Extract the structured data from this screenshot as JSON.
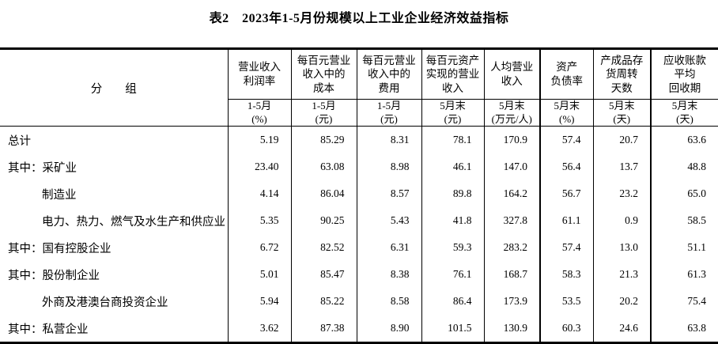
{
  "title": "表2　2023年1-5月份规模以上工业企业经济效益指标",
  "table": {
    "group_header": "分　　组",
    "columns": [
      {
        "name": "营业收入\n利润率",
        "period": "1-5月",
        "unit": "(%)"
      },
      {
        "name": "每百元营业\n收入中的\n成本",
        "period": "1-5月",
        "unit": "(元)"
      },
      {
        "name": "每百元营业\n收入中的\n费用",
        "period": "1-5月",
        "unit": "(元)"
      },
      {
        "name": "每百元资产\n实现的营业\n收入",
        "period": "5月末",
        "unit": "(元)"
      },
      {
        "name": "人均营业\n收入",
        "period": "5月末",
        "unit": "(万元/人)"
      },
      {
        "name": "资产\n负债率",
        "period": "5月末",
        "unit": "(%)"
      },
      {
        "name": "产成品存\n货周转\n天数",
        "period": "5月末",
        "unit": "(天)"
      },
      {
        "name": "应收账款\n平均\n回收期",
        "period": "5月末",
        "unit": "(天)"
      }
    ],
    "rows": [
      {
        "label": "总计",
        "indent": false,
        "values": [
          "5.19",
          "85.29",
          "8.31",
          "78.1",
          "170.9",
          "57.4",
          "20.7",
          "63.6"
        ]
      },
      {
        "label": "其中：采矿业",
        "indent": false,
        "values": [
          "23.40",
          "63.08",
          "8.98",
          "46.1",
          "147.0",
          "56.4",
          "13.7",
          "48.8"
        ]
      },
      {
        "label": "制造业",
        "indent": true,
        "values": [
          "4.14",
          "86.04",
          "8.57",
          "89.8",
          "164.2",
          "56.7",
          "23.2",
          "65.0"
        ]
      },
      {
        "label": "电力、热力、燃气及水生产和供应业",
        "indent": true,
        "values": [
          "5.35",
          "90.25",
          "5.43",
          "41.8",
          "327.8",
          "61.1",
          "0.9",
          "58.5"
        ]
      },
      {
        "label": "其中：国有控股企业",
        "indent": false,
        "values": [
          "6.72",
          "82.52",
          "6.31",
          "59.3",
          "283.2",
          "57.4",
          "13.0",
          "51.1"
        ]
      },
      {
        "label": "其中：股份制企业",
        "indent": false,
        "values": [
          "5.01",
          "85.47",
          "8.38",
          "76.1",
          "168.7",
          "58.3",
          "21.3",
          "61.3"
        ]
      },
      {
        "label": "外商及港澳台商投资企业",
        "indent": true,
        "values": [
          "5.94",
          "85.22",
          "8.58",
          "86.4",
          "173.9",
          "53.5",
          "20.2",
          "75.4"
        ]
      },
      {
        "label": "其中：私营企业",
        "indent": false,
        "values": [
          "3.62",
          "87.38",
          "8.90",
          "101.5",
          "130.9",
          "60.3",
          "24.6",
          "63.8"
        ]
      }
    ]
  }
}
